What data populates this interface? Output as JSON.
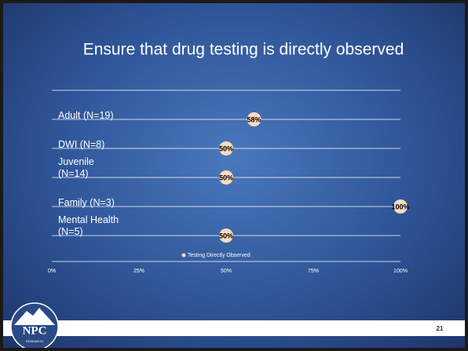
{
  "chart_data": {
    "type": "dot",
    "title": "Ensure that drug testing is directly observed",
    "categories": [
      "Adult (N=19)",
      "DWI (N=8)",
      "Juvenile (N=14)",
      "Family (N=3)",
      "Mental Health (N=5)"
    ],
    "series": [
      {
        "name": "Testing Directly Observed",
        "color": "#f8dcc0",
        "values": [
          58,
          50,
          50,
          100,
          50
        ],
        "value_labels": [
          "58%",
          "50%",
          "50%",
          "100%",
          "50%"
        ]
      }
    ],
    "xlim": [
      0,
      100
    ],
    "xticks": [
      {
        "value": 0,
        "label": "0%"
      },
      {
        "value": 25,
        "label": "25%"
      },
      {
        "value": 50,
        "label": "50%"
      },
      {
        "value": 75,
        "label": "75%"
      },
      {
        "value": 100,
        "label": "100%"
      }
    ],
    "legend": "bottom"
  },
  "footer": {
    "slide_number": "21",
    "logo": "NPC",
    "logo_subtitle": "RESEARCH"
  }
}
